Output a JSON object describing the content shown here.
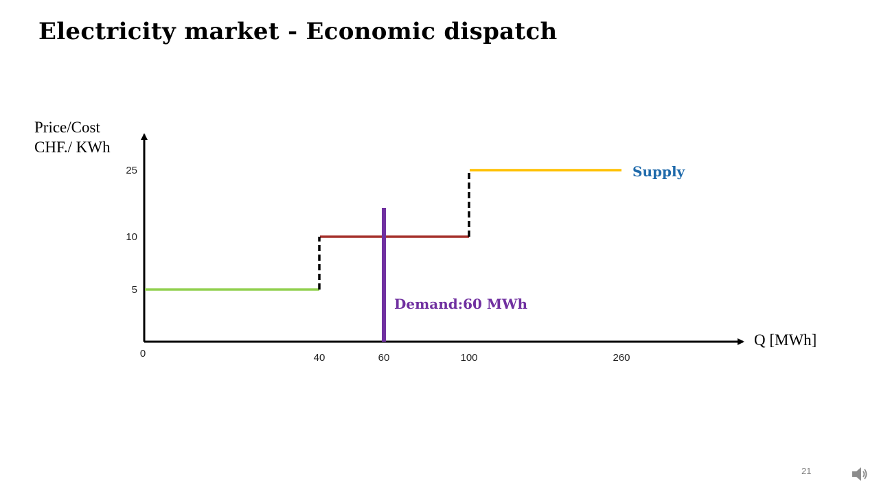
{
  "slide": {
    "title": "Electricity market - Economic dispatch",
    "page_number": "21",
    "audio_icon": "speaker-icon"
  },
  "chart_data": {
    "type": "line",
    "ylabel": [
      "Price/Cost",
      "CHF./ KWh"
    ],
    "xlabel": "Q [MWh]",
    "origin_label": "0",
    "x_ticks": [
      40,
      60,
      100,
      260
    ],
    "y_ticks": [
      5,
      10,
      25
    ],
    "series": [
      {
        "name": "Supply",
        "steps": [
          {
            "x": [
              0,
              40
            ],
            "y": 5,
            "color": "#92D050"
          },
          {
            "x": [
              40,
              100
            ],
            "y": 10,
            "color": "#A5312C"
          },
          {
            "x": [
              100,
              260
            ],
            "y": 25,
            "color": "#FFC000"
          }
        ],
        "risers": [
          {
            "x": 40,
            "y": [
              5,
              10
            ]
          },
          {
            "x": 100,
            "y": [
              10,
              25
            ]
          }
        ],
        "riser_color": "#000000",
        "label_color": "#1F6AAB"
      },
      {
        "name": "Demand:60 MWh",
        "x": 60,
        "y_range": [
          0,
          13
        ],
        "color": "#7030A0"
      }
    ]
  }
}
